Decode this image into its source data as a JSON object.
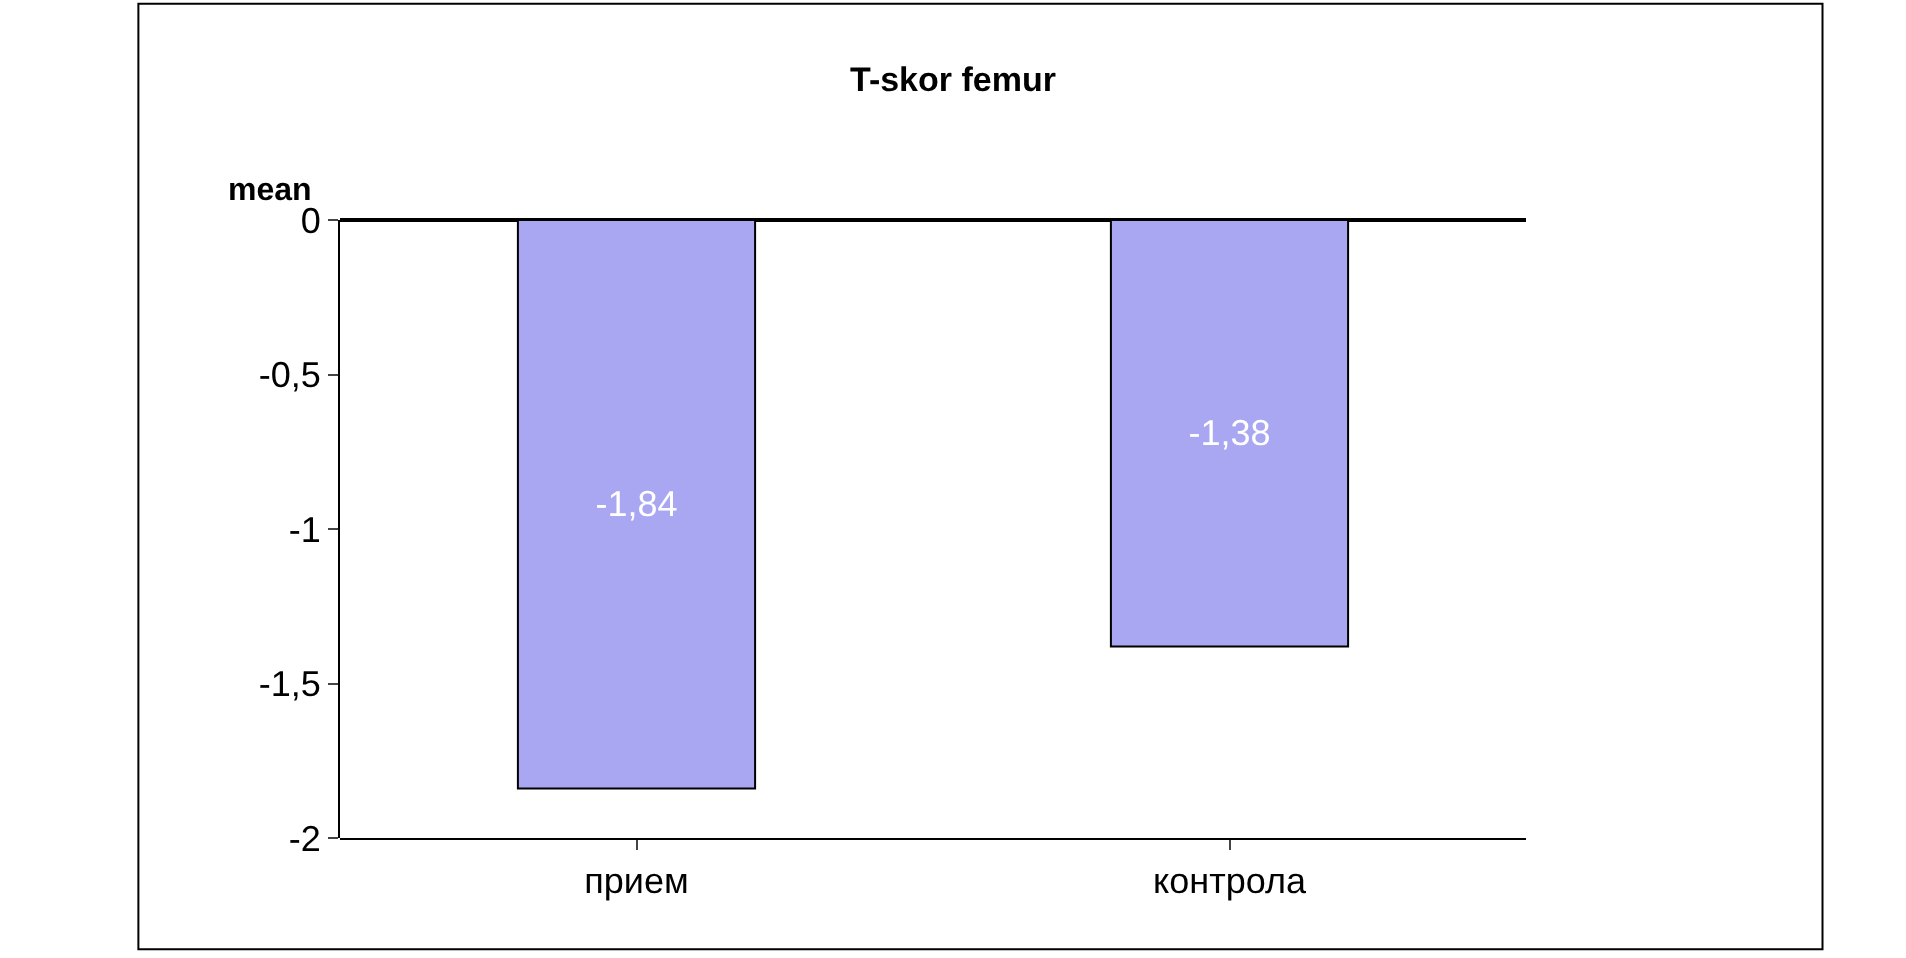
{
  "chart_data": {
    "type": "bar",
    "title": "T-skor femur",
    "ylabel": "mean",
    "categories": [
      "прием",
      "контрола"
    ],
    "values": [
      -1.84,
      -1.38
    ],
    "value_labels": [
      "-1,84",
      "-1,38"
    ],
    "color": "#a9a6f2",
    "ylim": [
      -2,
      0
    ],
    "yticks": [
      {
        "value": 0,
        "label": "0"
      },
      {
        "value": -0.5,
        "label": "-0,5"
      },
      {
        "value": -1,
        "label": "-1"
      },
      {
        "value": -1.5,
        "label": "-1,5"
      },
      {
        "value": -2,
        "label": "-2"
      }
    ],
    "legend": false
  }
}
